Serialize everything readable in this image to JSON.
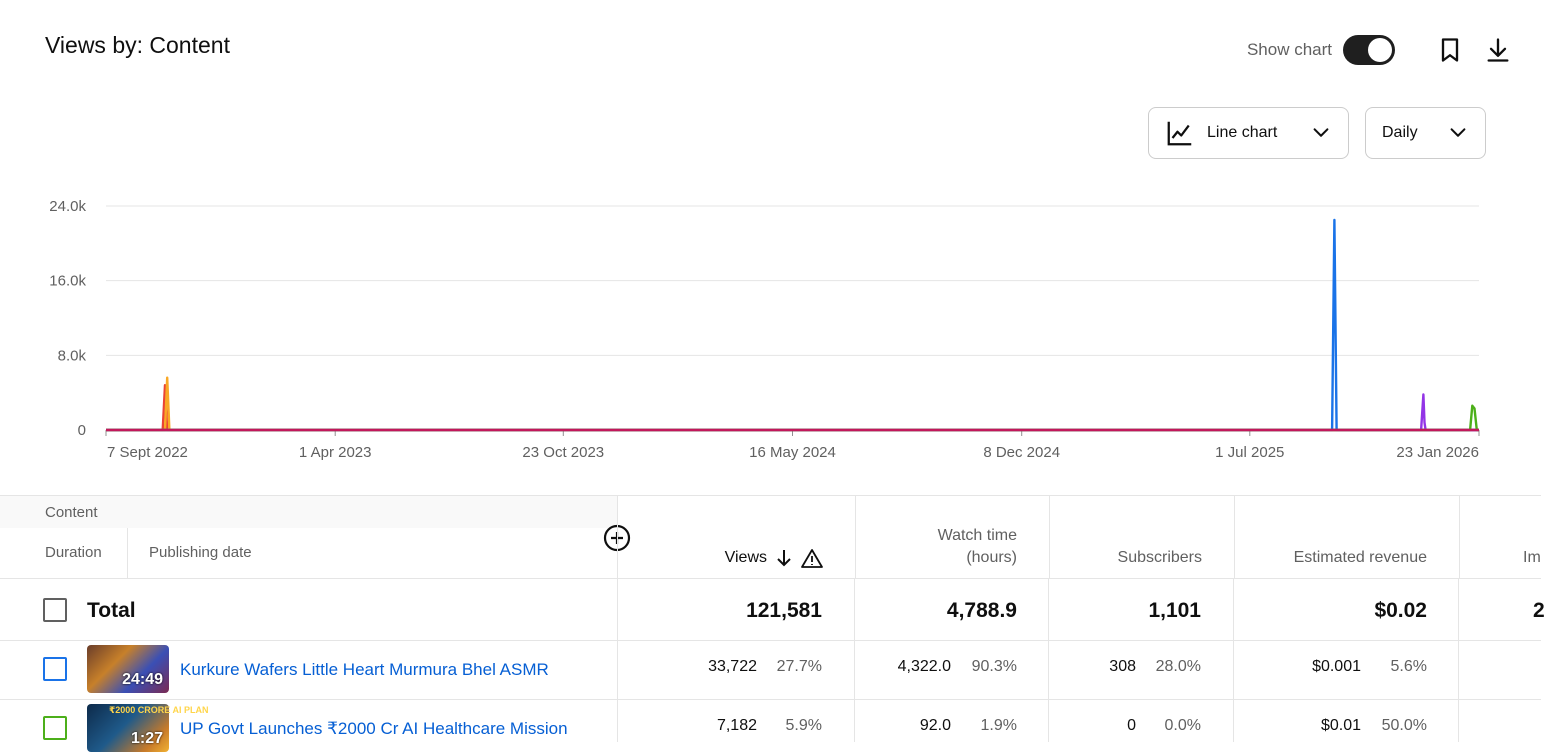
{
  "header": {
    "title": "Views by: Content",
    "show_chart_label": "Show chart",
    "show_chart_on": true
  },
  "controls": {
    "chart_type": "Line chart",
    "period": "Daily"
  },
  "chart_data": {
    "type": "line",
    "ylim": [
      0,
      24000
    ],
    "yticks": [
      "24.0k",
      "16.0k",
      "8.0k",
      "0"
    ],
    "ytick_values": [
      24000,
      16000,
      8000,
      0
    ],
    "xticks": [
      "7 Sept 2022",
      "1 Apr 2023",
      "23 Oct 2023",
      "16 May 2024",
      "8 Dec 2024",
      "1 Jul 2025",
      "23 Jan 2026"
    ],
    "xtick_dates": [
      "2022-09-07",
      "2023-04-01",
      "2023-10-23",
      "2024-05-16",
      "2024-12-08",
      "2025-07-01",
      "2026-01-23"
    ],
    "grid": true,
    "series": [
      {
        "color": "#ea4335",
        "points": [
          [
            "2022-09-07",
            0
          ],
          [
            "2022-10-28",
            0
          ],
          [
            "2022-10-30",
            4800
          ],
          [
            "2022-11-01",
            0
          ],
          [
            "2026-01-23",
            0
          ]
        ]
      },
      {
        "color": "#f9a825",
        "points": [
          [
            "2022-09-07",
            0
          ],
          [
            "2022-10-30",
            0
          ],
          [
            "2022-11-01",
            5600
          ],
          [
            "2022-11-03",
            0
          ],
          [
            "2026-01-23",
            0
          ]
        ]
      },
      {
        "color": "#1a73e8",
        "points": [
          [
            "2022-09-07",
            0
          ],
          [
            "2025-09-13",
            0
          ],
          [
            "2025-09-15",
            22500
          ],
          [
            "2025-09-17",
            0
          ],
          [
            "2026-01-23",
            0
          ]
        ]
      },
      {
        "color": "#9334e6",
        "points": [
          [
            "2022-09-07",
            0
          ],
          [
            "2025-12-02",
            0
          ],
          [
            "2025-12-04",
            3800
          ],
          [
            "2025-12-05",
            800
          ],
          [
            "2025-12-06",
            0
          ],
          [
            "2026-01-23",
            0
          ]
        ]
      },
      {
        "color": "#4caf1a",
        "points": [
          [
            "2022-09-07",
            0
          ],
          [
            "2026-01-15",
            0
          ],
          [
            "2026-01-17",
            2600
          ],
          [
            "2026-01-19",
            2300
          ],
          [
            "2026-01-21",
            0
          ],
          [
            "2026-01-23",
            0
          ]
        ]
      },
      {
        "color": "#c2185b",
        "points": [
          [
            "2022-09-07",
            0
          ],
          [
            "2026-01-23",
            0
          ]
        ]
      }
    ]
  },
  "table": {
    "content_header": "Content",
    "duration_header": "Duration",
    "publishing_header": "Publishing date",
    "columns": [
      {
        "label_line1": "Views",
        "label_line2": ""
      },
      {
        "label_line1": "Watch time",
        "label_line2": "(hours)"
      },
      {
        "label_line1": "Subscribers",
        "label_line2": ""
      },
      {
        "label_line1": "Estimated revenue",
        "label_line2": ""
      },
      {
        "label_line1": "Im",
        "label_line2": ""
      }
    ],
    "total": {
      "label": "Total",
      "views": "121,581",
      "watch_time": "4,788.9",
      "subscribers": "1,101",
      "revenue": "$0.02",
      "partial": "2"
    },
    "rows": [
      {
        "title": "Kurkure Wafers Little Heart Murmura Bhel ASMR",
        "duration": "24:49",
        "checkbox_color": "#1a73e8",
        "views": "33,722",
        "views_pct": "27.7%",
        "watch": "4,322.0",
        "watch_pct": "90.3%",
        "subs": "308",
        "subs_pct": "28.0%",
        "revenue": "$0.001",
        "revenue_pct": "5.6%"
      },
      {
        "title": "UP Govt Launches ₹2000 Cr AI Healthcare Mission",
        "duration": "1:27",
        "thumb_text": "₹2000 CRORE AI PLAN",
        "checkbox_color": "#4caf1a",
        "views": "7,182",
        "views_pct": "5.9%",
        "watch": "92.0",
        "watch_pct": "1.9%",
        "subs": "0",
        "subs_pct": "0.0%",
        "revenue": "$0.01",
        "revenue_pct": "50.0%"
      }
    ]
  }
}
